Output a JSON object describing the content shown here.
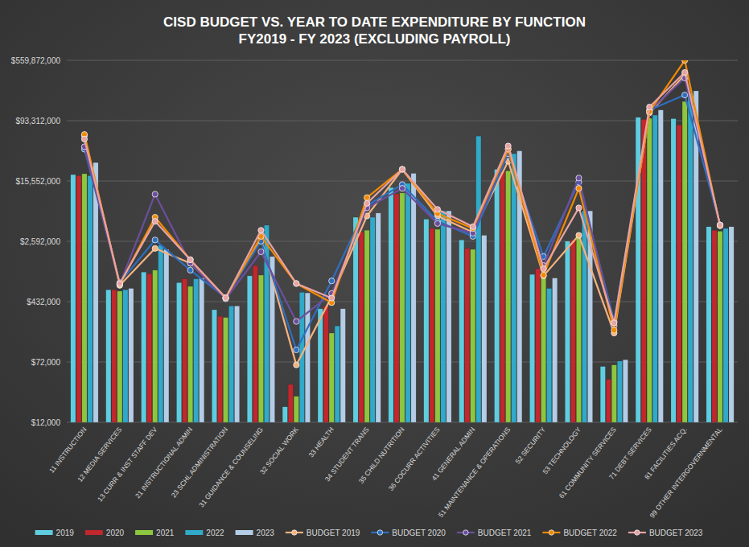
{
  "chart_data": {
    "type": "bar",
    "title": "CISD BUDGET VS. YEAR TO DATE EXPENDITURE BY FUNCTION",
    "subtitle": "FY2019 - FY 2023 (EXCLUDING PAYROLL)",
    "categories": [
      "11 INSTRUCTION",
      "12 MEDIA SERVICES",
      "13 CURR & INST STAFF DEV",
      "21 INSTRUCTIONAL ADMIN",
      "23 SCHL ADMINISTRATION",
      "31 GUIDANCE & COUNSELING",
      "32 SOCIAL WORK",
      "33 HEALTH",
      "34 STUDENT TRANS",
      "35 CHILD NUTRITION",
      "36 COCURR ACTIVITIES",
      "41 GENERAL ADMIN",
      "51 MAINTENANCE & OPERATIONS",
      "52 SECURITY",
      "53 TECHNOLOGY",
      "61 COMMUNITY SERVICES",
      "71 DEBT SERVICES",
      "81 FACILITIES ACQ.",
      "99 OTHER INTERGOVERNMENTAL"
    ],
    "series": [
      {
        "name": "2019",
        "type": "bar",
        "color": "#5fcde0",
        "values": [
          18800000,
          615000,
          1040000,
          760000,
          340000,
          930000,
          19000,
          350000,
          5300000,
          12800000,
          5000000,
          2700000,
          22000000,
          970000,
          2600000,
          63000,
          103000000,
          99000000,
          4000000
        ]
      },
      {
        "name": "2020",
        "type": "bar",
        "color": "#c1272d",
        "values": [
          18200000,
          615000,
          990000,
          850000,
          280000,
          1260000,
          37000,
          380000,
          3400000,
          10600000,
          3800000,
          2100000,
          21000000,
          1150000,
          2700000,
          43000,
          97000000,
          82000000,
          3600000
        ]
      },
      {
        "name": "2021",
        "type": "bar",
        "color": "#8dc63f",
        "values": [
          19300000,
          590000,
          1100000,
          680000,
          270000,
          950000,
          26000,
          170000,
          3600000,
          10900000,
          3700000,
          2040000,
          21000000,
          870000,
          3300000,
          66000,
          100000000,
          165000000,
          3500000
        ]
      },
      {
        "name": "2022",
        "type": "bar",
        "color": "#31a9c9",
        "values": [
          18200000,
          615000,
          2300000,
          850000,
          380000,
          4180000,
          570000,
          210000,
          5300000,
          14500000,
          6400000,
          59000000,
          35000000,
          640000,
          6400000,
          74000,
          110000000,
          210000000,
          3800000
        ]
      },
      {
        "name": "2023",
        "type": "bar",
        "color": "#b4cde6",
        "values": [
          26900000,
          640000,
          2040000,
          870000,
          380000,
          1650000,
          560000,
          350000,
          6000000,
          19500000,
          6400000,
          3100000,
          38000000,
          870000,
          6400000,
          77000,
          128000000,
          226000000,
          4000000
        ]
      },
      {
        "name": "BUDGET 2019",
        "type": "line",
        "marker": "circle",
        "color": "#f6b27e",
        "values": [
          60000000,
          700000,
          2100000,
          1350000,
          485000,
          2800000,
          66000,
          500000,
          5500000,
          22000000,
          5500000,
          3400000,
          28000000,
          930000,
          3100000,
          170000,
          118000000,
          364000000,
          4200000
        ]
      },
      {
        "name": "BUDGET 2020",
        "type": "line",
        "marker": "circle",
        "color": "#2f6fc0",
        "values": [
          40000000,
          760000,
          2700000,
          1100000,
          485000,
          2600000,
          103000,
          800000,
          7500000,
          14000000,
          4700000,
          3000000,
          35000000,
          1650000,
          15000000,
          240000,
          128000000,
          200000000,
          4200000
        ]
      },
      {
        "name": "BUDGET 2021",
        "type": "line",
        "marker": "circle",
        "color": "#6b4f9e",
        "values": [
          43000000,
          720000,
          10500000,
          1350000,
          470000,
          1900000,
          240000,
          550000,
          7000000,
          12500000,
          4400000,
          3300000,
          40000000,
          1260000,
          17000000,
          211000,
          125000000,
          331000000,
          4200000
        ]
      },
      {
        "name": "BUDGET 2022",
        "type": "line",
        "marker": "circle",
        "color": "#f38a00",
        "values": [
          62000000,
          720000,
          5300000,
          1500000,
          485000,
          3000000,
          740000,
          420000,
          9500000,
          22000000,
          5900000,
          3800000,
          40000000,
          950000,
          12500000,
          185000,
          122000000,
          559000000,
          4100000
        ]
      },
      {
        "name": "BUDGET 2023",
        "type": "line",
        "marker": "circle",
        "color": "#e8a3a3",
        "values": [
          54000000,
          740000,
          4700000,
          1500000,
          485000,
          3600000,
          740000,
          480000,
          8000000,
          22000000,
          6700000,
          4000000,
          44000000,
          1150000,
          7000000,
          230000,
          140000000,
          391000000,
          4200000
        ]
      }
    ],
    "ylim": [
      12000,
      559872000
    ],
    "yticks": [
      {
        "value": 12000,
        "label": "$12,000"
      },
      {
        "value": 72000,
        "label": "$72,000"
      },
      {
        "value": 432000,
        "label": "$432,000"
      },
      {
        "value": 2592000,
        "label": "$2,592,000"
      },
      {
        "value": 15552000,
        "label": "$15,552,000"
      },
      {
        "value": 93312000,
        "label": "$93,312,000"
      },
      {
        "value": 559872000,
        "label": "$559,872,000"
      }
    ],
    "log": "y",
    "grid": true,
    "legend": "bottom"
  }
}
